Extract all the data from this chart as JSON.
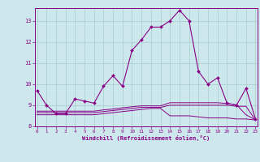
{
  "xlabel": "Windchill (Refroidissement éolien,°C)",
  "background_color": "#cce8ec",
  "grid_color": "#a8cccc",
  "line_color": "#880088",
  "xmin": 0,
  "xmax": 23,
  "ymin": 8,
  "ymax": 13.6,
  "yticks": [
    8,
    9,
    10,
    11,
    12,
    13
  ],
  "hours": [
    0,
    1,
    2,
    3,
    4,
    5,
    6,
    7,
    8,
    9,
    10,
    11,
    12,
    13,
    14,
    15,
    16,
    17,
    18,
    19,
    20,
    21,
    22,
    23
  ],
  "main_line": [
    9.7,
    9.0,
    8.6,
    8.6,
    9.3,
    9.2,
    9.1,
    9.9,
    10.4,
    9.9,
    11.6,
    12.1,
    12.7,
    12.7,
    13.0,
    13.5,
    13.0,
    10.6,
    10.0,
    10.3,
    9.1,
    9.0,
    9.8,
    8.35
  ],
  "flat_line1": [
    8.55,
    8.55,
    8.55,
    8.55,
    8.55,
    8.55,
    8.55,
    8.6,
    8.65,
    8.7,
    8.75,
    8.8,
    8.85,
    8.85,
    8.5,
    8.5,
    8.5,
    8.45,
    8.4,
    8.4,
    8.4,
    8.35,
    8.35,
    8.3
  ],
  "flat_line2": [
    8.65,
    8.65,
    8.65,
    8.65,
    8.65,
    8.65,
    8.65,
    8.7,
    8.75,
    8.8,
    8.85,
    8.9,
    8.9,
    8.9,
    9.0,
    9.0,
    9.0,
    9.0,
    9.0,
    9.0,
    9.0,
    8.95,
    8.95,
    8.3
  ],
  "flat_line3": [
    8.72,
    8.72,
    8.72,
    8.72,
    8.72,
    8.72,
    8.72,
    8.78,
    8.82,
    8.88,
    8.93,
    8.97,
    8.97,
    8.97,
    9.12,
    9.12,
    9.12,
    9.12,
    9.12,
    9.12,
    9.08,
    9.02,
    8.55,
    8.3
  ]
}
